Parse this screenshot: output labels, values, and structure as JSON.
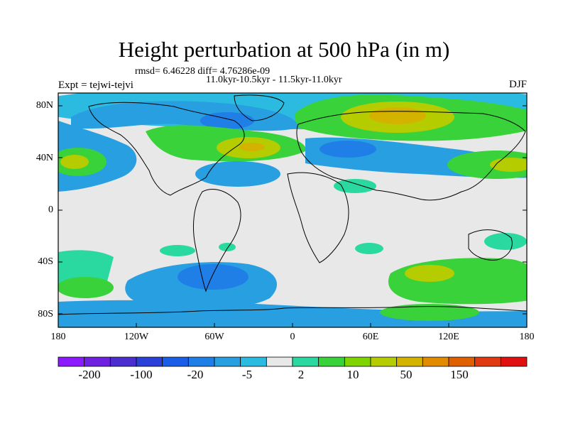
{
  "title": "Height perturbation at 500 hPa (in m)",
  "stats": "rmsd= 6.46228 diff= 4.76286e-09",
  "period": "11.0kyr-10.5kyr - 11.5kyr-11.0kyr",
  "experiment": "Expt = tejwi-tejvi",
  "season": "DJF",
  "lat_ticks": [
    "80N",
    "40N",
    "0",
    "40S",
    "80S"
  ],
  "lon_ticks": [
    "180",
    "120W",
    "60W",
    "0",
    "60E",
    "120E",
    "180"
  ],
  "colorbar": {
    "colors": [
      "#8c1aff",
      "#7020e0",
      "#4b2ed0",
      "#2a40d8",
      "#1a5ee8",
      "#1f7fe6",
      "#279fe0",
      "#2bbbe0",
      "#e8e8e8",
      "#29d9a0",
      "#39d23a",
      "#7fd400",
      "#b5cc00",
      "#d4b300",
      "#e08b00",
      "#e06000",
      "#e03a10",
      "#e01010"
    ],
    "labels": [
      "-200",
      "-100",
      "-20",
      "-5",
      "2",
      "10",
      "50",
      "150"
    ]
  }
}
